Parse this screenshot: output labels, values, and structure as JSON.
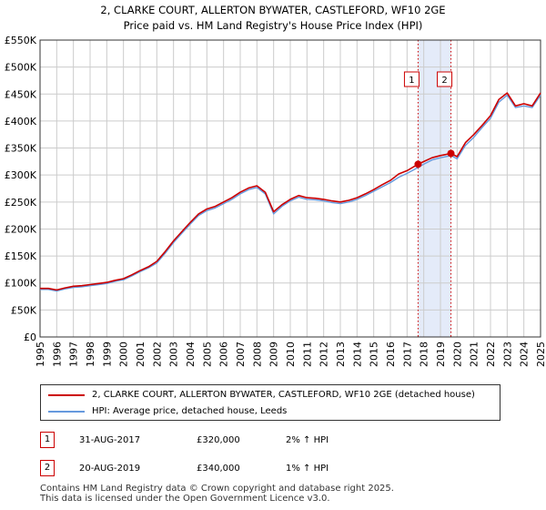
{
  "chart_data": {
    "type": "line",
    "title": "2, CLARKE COURT, ALLERTON BYWATER, CASTLEFORD, WF10 2GE",
    "subtitle": "Price paid vs. HM Land Registry's House Price Index (HPI)",
    "xlabel": "",
    "ylabel": "",
    "xlim": [
      1995,
      2025
    ],
    "ylim": [
      0,
      550000
    ],
    "y_ticks": [
      {
        "value": 0,
        "label": "£0"
      },
      {
        "value": 50000,
        "label": "£50K"
      },
      {
        "value": 100000,
        "label": "£100K"
      },
      {
        "value": 150000,
        "label": "£150K"
      },
      {
        "value": 200000,
        "label": "£200K"
      },
      {
        "value": 250000,
        "label": "£250K"
      },
      {
        "value": 300000,
        "label": "£300K"
      },
      {
        "value": 350000,
        "label": "£350K"
      },
      {
        "value": 400000,
        "label": "£400K"
      },
      {
        "value": 450000,
        "label": "£450K"
      },
      {
        "value": 500000,
        "label": "£500K"
      },
      {
        "value": 550000,
        "label": "£550K"
      }
    ],
    "x_ticks": [
      "1995",
      "1996",
      "1997",
      "1998",
      "1999",
      "2000",
      "2001",
      "2002",
      "2003",
      "2004",
      "2005",
      "2006",
      "2007",
      "2008",
      "2009",
      "2010",
      "2011",
      "2012",
      "2013",
      "2014",
      "2015",
      "2016",
      "2017",
      "2018",
      "2019",
      "2020",
      "2021",
      "2022",
      "2023",
      "2024",
      "2025"
    ],
    "grid": true,
    "highlight_span": {
      "start": 2017.66,
      "end": 2019.63
    },
    "series": [
      {
        "name": "2, CLARKE COURT, ALLERTON BYWATER, CASTLEFORD, WF10 2GE (detached house)",
        "color": "#cc0000",
        "x": [
          1995.0,
          1995.5,
          1996.0,
          1996.5,
          1997.0,
          1997.5,
          1998.0,
          1998.5,
          1999.0,
          1999.5,
          2000.0,
          2000.5,
          2001.0,
          2001.5,
          2002.0,
          2002.5,
          2003.0,
          2003.5,
          2004.0,
          2004.5,
          2005.0,
          2005.5,
          2006.0,
          2006.5,
          2007.0,
          2007.5,
          2008.0,
          2008.5,
          2009.0,
          2009.5,
          2010.0,
          2010.5,
          2011.0,
          2011.5,
          2012.0,
          2012.5,
          2013.0,
          2013.5,
          2014.0,
          2014.5,
          2015.0,
          2015.5,
          2016.0,
          2016.5,
          2017.0,
          2017.66,
          2018.0,
          2018.5,
          2019.0,
          2019.63,
          2020.0,
          2020.5,
          2021.0,
          2021.5,
          2022.0,
          2022.5,
          2023.0,
          2023.5,
          2024.0,
          2024.5,
          2025.0
        ],
        "y": [
          90000,
          90000,
          87000,
          91000,
          94000,
          95000,
          97000,
          99000,
          101000,
          105000,
          108000,
          115000,
          123000,
          130000,
          140000,
          158000,
          178000,
          195000,
          212000,
          228000,
          237000,
          242000,
          250000,
          258000,
          268000,
          276000,
          280000,
          268000,
          232000,
          245000,
          255000,
          262000,
          258000,
          257000,
          255000,
          252000,
          250000,
          253000,
          258000,
          265000,
          273000,
          282000,
          290000,
          302000,
          308000,
          320000,
          325000,
          332000,
          336000,
          340000,
          334000,
          360000,
          375000,
          392000,
          410000,
          440000,
          452000,
          428000,
          432000,
          428000,
          452000
        ]
      },
      {
        "name": "HPI: Average price, detached house, Leeds",
        "color": "#6699dd",
        "x": [
          1995.0,
          1995.5,
          1996.0,
          1996.5,
          1997.0,
          1997.5,
          1998.0,
          1998.5,
          1999.0,
          1999.5,
          2000.0,
          2000.5,
          2001.0,
          2001.5,
          2002.0,
          2002.5,
          2003.0,
          2003.5,
          2004.0,
          2004.5,
          2005.0,
          2005.5,
          2006.0,
          2006.5,
          2007.0,
          2007.5,
          2008.0,
          2008.5,
          2009.0,
          2009.5,
          2010.0,
          2010.5,
          2011.0,
          2011.5,
          2012.0,
          2012.5,
          2013.0,
          2013.5,
          2014.0,
          2014.5,
          2015.0,
          2015.5,
          2016.0,
          2016.5,
          2017.0,
          2017.66,
          2018.0,
          2018.5,
          2019.0,
          2019.63,
          2020.0,
          2020.5,
          2021.0,
          2021.5,
          2022.0,
          2022.5,
          2023.0,
          2023.5,
          2024.0,
          2024.5,
          2025.0
        ],
        "y": [
          88000,
          88000,
          85000,
          89000,
          92000,
          93000,
          95000,
          97000,
          99000,
          103000,
          106000,
          113000,
          121000,
          128000,
          137000,
          155000,
          175000,
          192000,
          209000,
          225000,
          234000,
          239000,
          247000,
          255000,
          265000,
          273000,
          277000,
          265000,
          228000,
          242000,
          252000,
          259000,
          255000,
          254000,
          252000,
          249000,
          247000,
          250000,
          255000,
          262000,
          270000,
          278000,
          286000,
          296000,
          303000,
          314000,
          320000,
          328000,
          332000,
          336000,
          330000,
          355000,
          370000,
          388000,
          405000,
          435000,
          448000,
          425000,
          428000,
          425000,
          448000
        ]
      }
    ],
    "sales": [
      {
        "marker": "1",
        "x": 2017.66,
        "value": 320000
      },
      {
        "marker": "2",
        "x": 2019.63,
        "value": 340000
      }
    ]
  },
  "legend": {
    "property_label": "2, CLARKE COURT, ALLERTON BYWATER, CASTLEFORD, WF10 2GE (detached house)",
    "hpi_label": "HPI: Average price, detached house, Leeds"
  },
  "sales_table": [
    {
      "marker": "1",
      "date": "31-AUG-2017",
      "price": "£320,000",
      "hpi": "2% ↑ HPI"
    },
    {
      "marker": "2",
      "date": "20-AUG-2019",
      "price": "£340,000",
      "hpi": "1% ↑ HPI"
    }
  ],
  "footer": {
    "line1": "Contains HM Land Registry data © Crown copyright and database right 2025.",
    "line2": "This data is licensed under the Open Government Licence v3.0."
  },
  "colors": {
    "property_line": "#cc0000",
    "hpi_line": "#6699dd",
    "highlight": "#dde6f7",
    "marker_border": "#cc0000"
  }
}
